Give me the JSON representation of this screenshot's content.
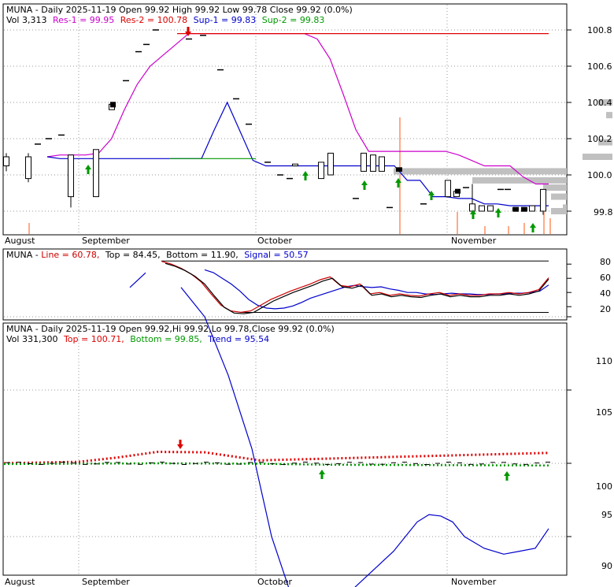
{
  "colors": {
    "res1": "#cc00cc",
    "res2": "#dd0000",
    "sup1": "#0000cc",
    "sup2": "#009900",
    "line": "#cc0000",
    "signal": "#0000cc",
    "trend": "#0000cc",
    "volume": "#ffaa88",
    "arrow_up": "#009900",
    "arrow_down": "#dd0000",
    "grid": "#999999",
    "volprofile": "#c0c0c0"
  },
  "panel1": {
    "title": "MUNA - Daily 2025-11-19 Open 99.92  High 99.92  Low 99.78  Close 99.92 (0.0%)",
    "legend": {
      "vol": "Vol 3,313",
      "res1": "Res-1 = 99.95",
      "res2": "Res-2 = 100.78",
      "sup1": "Sup-1 = 99.83",
      "sup2": "Sup-2 = 99.83"
    },
    "yticks": [
      "100.8",
      "100.6",
      "100.4",
      "100.2",
      "100.0",
      "99.8"
    ]
  },
  "panel2": {
    "legend": {
      "name": "MUNA - ",
      "line": "Line = 60.78,",
      "top": "Top = 84.45,",
      "bottom": "Bottom = 11.90,",
      "signal": "Signal = 50.57"
    },
    "yticks": [
      "80",
      "60",
      "40",
      "20"
    ]
  },
  "panel3": {
    "title": "MUNA - Daily 2025-11-19 Open 99.92,Hi 99.92,Lo 99.78,Close 99.92 (0.0%)",
    "legend": {
      "vol": "Vol 331,300",
      "top": "Top = 100.71,",
      "bottom": "Bottom = 99.85,",
      "trend": "Trend = 95.54"
    },
    "yticks": [
      "110",
      "105",
      "100",
      "95",
      "90"
    ]
  },
  "xaxis": {
    "labels": [
      "August",
      "September",
      "October",
      "November"
    ]
  },
  "chart_data": [
    {
      "type": "candlestick",
      "title": "MUNA - Daily 2025-11-19 Open 99.92  High 99.92  Low 99.78  Close 99.92 (0.0%)",
      "x_labels": [
        "August",
        "September",
        "October",
        "November"
      ],
      "ylim": [
        99.68,
        100.86
      ],
      "series": [
        {
          "name": "Res-1",
          "last": 99.95
        },
        {
          "name": "Res-2",
          "last": 100.78
        },
        {
          "name": "Sup-1",
          "last": 99.83
        },
        {
          "name": "Sup-2",
          "last": 99.83
        }
      ],
      "res1": [
        100.1,
        100.11,
        100.11,
        100.11,
        100.12,
        100.2,
        100.36,
        100.5,
        100.6,
        100.66,
        100.72,
        100.78,
        100.78,
        100.78,
        100.78,
        100.78,
        100.78,
        100.78,
        100.78,
        100.78,
        100.78,
        100.75,
        100.64,
        100.45,
        100.25,
        100.13,
        100.13,
        100.13,
        100.13,
        100.13,
        100.13,
        100.13,
        100.11,
        100.08,
        100.05,
        100.05,
        100.05,
        99.99,
        99.95,
        99.95
      ],
      "res2": [
        100.78,
        100.78,
        100.78,
        100.78,
        100.78,
        100.78
      ],
      "sup1": [
        100.1,
        100.09,
        100.09,
        100.09,
        100.09,
        100.09,
        100.09,
        100.09,
        100.09,
        100.09,
        100.09,
        100.09,
        100.09,
        100.25,
        100.4,
        100.24,
        100.08,
        100.05,
        100.05,
        100.05,
        100.05,
        100.05,
        100.05,
        100.05,
        100.05,
        100.05,
        100.05,
        100.05,
        99.97,
        99.97,
        99.88,
        99.88,
        99.87,
        99.87,
        99.84,
        99.84,
        99.83,
        99.83,
        99.83,
        99.83
      ],
      "sup2": [
        100.09,
        100.09,
        100.09,
        100.09,
        100.09,
        100.09
      ],
      "volume_spike": "late October",
      "markers": {
        "sell": [
          "September"
        ],
        "buy": [
          "September",
          "October",
          "November"
        ]
      }
    },
    {
      "type": "line",
      "title": "",
      "ylim": [
        8,
        88
      ],
      "series": [
        {
          "name": "Line",
          "last": 60.78,
          "values": [
            84,
            80,
            74,
            66,
            55,
            38,
            22,
            14,
            12,
            14,
            22,
            30,
            36,
            42,
            47,
            52,
            58,
            62,
            50,
            48,
            52,
            38,
            40,
            36,
            38,
            36,
            35,
            38,
            40,
            36,
            38,
            36,
            36,
            38,
            38,
            40,
            38,
            40,
            44,
            60.78
          ]
        },
        {
          "name": "Signal",
          "last": 50.57,
          "values": [
            72,
            68,
            60,
            52,
            42,
            30,
            22,
            18,
            17,
            18,
            21,
            26,
            32,
            36,
            40,
            44,
            48,
            50,
            48,
            47,
            48,
            45,
            43,
            40,
            40,
            38,
            37,
            38,
            39,
            38,
            38,
            37,
            37,
            38,
            38,
            39,
            39,
            40,
            42,
            50.57
          ]
        }
      ],
      "top": 84.45,
      "bottom": 11.9
    },
    {
      "type": "line",
      "title": "MUNA - Daily 2025-11-19 Open 99.92,Hi 99.92,Lo 99.78,Close 99.92 (0.0%)",
      "ylim": [
        89,
        116
      ],
      "series": [
        {
          "name": "Top",
          "last": 100.71
        },
        {
          "name": "Bottom",
          "last": 99.85
        },
        {
          "name": "Trend",
          "last": 95.54,
          "values": [
            112,
            113,
            112,
            110,
            106,
            101,
            95,
            91,
            90,
            90.3,
            91,
            92,
            93,
            94,
            95,
            96,
            96.5,
            96.4,
            96,
            95,
            94.2,
            93.8,
            94,
            94.2,
            95.54
          ]
        }
      ]
    }
  ]
}
